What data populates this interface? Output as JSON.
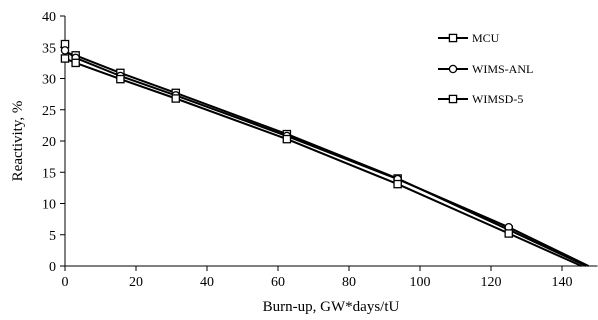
{
  "chart_data": {
    "type": "line",
    "title": "",
    "xlabel": "Burn-up, GW*days/tU",
    "ylabel": "Reactivity, %",
    "xlim": [
      0,
      150
    ],
    "ylim": [
      0,
      40
    ],
    "xticks": [
      0,
      20,
      40,
      60,
      80,
      100,
      120,
      140
    ],
    "yticks": [
      0,
      5,
      10,
      15,
      20,
      25,
      30,
      35,
      40
    ],
    "grid": false,
    "legend_position": "top-right",
    "series": [
      {
        "name": "MCU",
        "marker": "square",
        "color": "#000000",
        "x": [
          0,
          0,
          3,
          15.6,
          31.2,
          62.5,
          93.7,
          125,
          146.8
        ],
        "y": [
          35.5,
          34.2,
          33.7,
          30.9,
          27.7,
          21.1,
          14.0,
          5.8,
          0
        ],
        "marker_indices": [
          0,
          2,
          3,
          4,
          5,
          6,
          7
        ]
      },
      {
        "name": "WIMS-ANL",
        "marker": "circle",
        "color": "#000000",
        "x": [
          0,
          3,
          15.6,
          31.2,
          62.5,
          93.7,
          125,
          147.5
        ],
        "y": [
          34.5,
          33.3,
          30.4,
          27.3,
          20.8,
          13.9,
          6.2,
          0
        ],
        "marker_indices": [
          0,
          1,
          2,
          3,
          4,
          5,
          6
        ]
      },
      {
        "name": "WIMSD-5",
        "marker": "square",
        "color": "#000000",
        "x": [
          0,
          3,
          15.6,
          31.2,
          62.5,
          93.7,
          125,
          145.5
        ],
        "y": [
          33.2,
          32.5,
          29.9,
          26.8,
          20.3,
          13.1,
          5.2,
          0
        ],
        "marker_indices": [
          0,
          1,
          2,
          3,
          4,
          5,
          6
        ]
      }
    ]
  }
}
